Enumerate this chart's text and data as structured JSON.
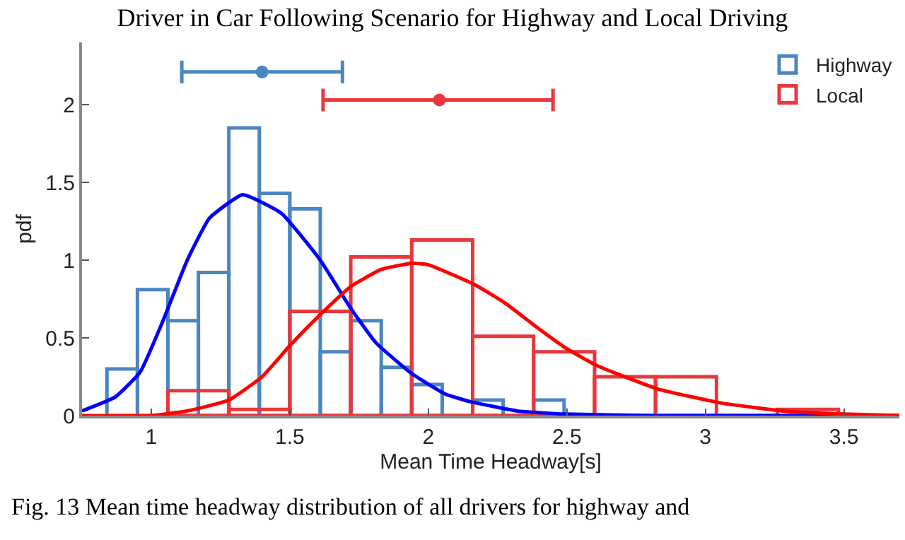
{
  "chart_data": {
    "type": "histogram",
    "title": "Driver in Car Following Scenario for Highway and Local Driving",
    "xlabel": "Mean Time Headway[s]",
    "ylabel": "pdf",
    "annotations": [
      "Fig. 13 Mean time headway distribution of all drivers for highway and"
    ],
    "xlim": [
      0.75,
      3.7
    ],
    "xticks": [
      1,
      1.5,
      2,
      2.5,
      3,
      3.5
    ],
    "ylim": [
      0,
      2.4
    ],
    "yticks": [
      0,
      0.5,
      1,
      1.5,
      2
    ],
    "legend": "top right",
    "series": [
      {
        "name": "Highway",
        "color": "#4a86c0",
        "bins": [
          0.84,
          0.95,
          1.06,
          1.17,
          1.28,
          1.39,
          1.5,
          1.61,
          1.72,
          1.83,
          1.94,
          2.05,
          2.16,
          2.27,
          2.38,
          2.49
        ],
        "values": [
          0.3,
          0.81,
          0.61,
          0.92,
          1.85,
          1.43,
          1.33,
          0.41,
          0.61,
          0.31,
          0.2,
          0,
          0.1,
          0,
          0.1
        ]
      },
      {
        "name": "Local",
        "color": "#e8383d",
        "bins": [
          1.06,
          1.28,
          1.5,
          1.72,
          1.94,
          2.16,
          2.38,
          2.6,
          2.82,
          3.04,
          3.26,
          3.48
        ],
        "values": [
          0.16,
          0.04,
          0.67,
          1.02,
          1.13,
          0.51,
          0.41,
          0.25,
          0.25,
          0,
          0.04
        ]
      },
      {
        "type": "line",
        "color": "#0000ff",
        "marker": "none",
        "x": [
          0.75,
          0.87,
          0.96,
          1.04,
          1.13,
          1.21,
          1.33,
          1.47,
          1.61,
          1.72,
          1.81,
          1.94,
          2.06,
          2.15,
          2.32,
          2.49,
          2.8,
          3.2,
          3.7
        ],
        "values": [
          0.03,
          0.12,
          0.28,
          0.6,
          1.0,
          1.27,
          1.42,
          1.3,
          1.0,
          0.69,
          0.47,
          0.27,
          0.14,
          0.09,
          0.03,
          0.01,
          0,
          0,
          0
        ]
      },
      {
        "type": "line",
        "color": "#ff0000",
        "marker": "none",
        "x": [
          0.75,
          1.0,
          1.13,
          1.28,
          1.4,
          1.5,
          1.61,
          1.72,
          1.83,
          1.94,
          2.0,
          2.17,
          2.28,
          2.39,
          2.5,
          2.61,
          2.83,
          3.06,
          3.28,
          3.5,
          3.7
        ],
        "values": [
          0,
          0,
          0.03,
          0.1,
          0.25,
          0.45,
          0.65,
          0.83,
          0.94,
          0.98,
          0.97,
          0.84,
          0.72,
          0.57,
          0.43,
          0.32,
          0.17,
          0.08,
          0.03,
          0.01,
          0
        ]
      },
      {
        "type": "scatter",
        "color": "#4a86c0",
        "marker": "circle",
        "x": [
          1.4
        ],
        "values": [
          2.21
        ],
        "xerrors": [
          [
            1.11,
            1.69
          ]
        ]
      },
      {
        "type": "scatter",
        "color": "#e8383d",
        "marker": "circle",
        "x": [
          2.04
        ],
        "values": [
          2.03
        ],
        "xerrors": [
          [
            1.62,
            2.45
          ]
        ]
      }
    ]
  }
}
